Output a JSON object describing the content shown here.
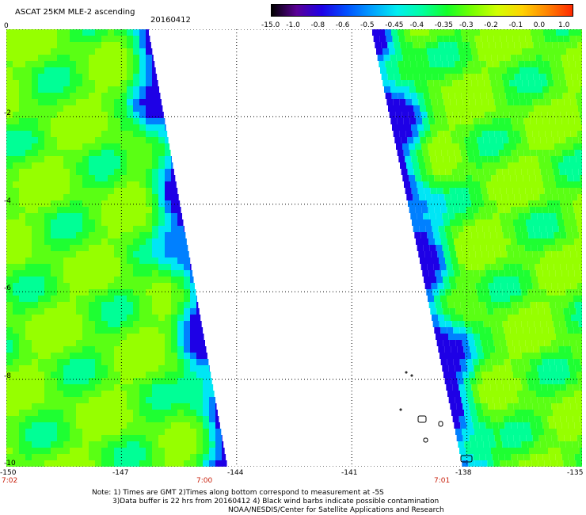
{
  "header": {
    "title": "ASCAT 25KM MLE-2 ascending",
    "date": "20160412"
  },
  "colorbar": {
    "labels": [
      "-15.0",
      "-1.0",
      "-0.8",
      "-0.6",
      "-0.5",
      "-0.45",
      "-0.4",
      "-0.35",
      "-0.3",
      "-0.2",
      "-0.1",
      "0.0",
      "1.0"
    ],
    "colors": [
      "#000000",
      "#5a0096",
      "#1e00e6",
      "#0050ff",
      "#00a0ff",
      "#00eef0",
      "#00ffa0",
      "#14ff28",
      "#78ff00",
      "#d2ff00",
      "#ffd200",
      "#ff8200",
      "#ff2800"
    ]
  },
  "axes": {
    "y_ticks": [
      "0",
      "-2",
      "-4",
      "-6",
      "-8",
      "-10"
    ],
    "y_values": [
      0,
      -2,
      -4,
      -6,
      -8,
      -10
    ],
    "x_ticks": [
      "-150",
      "-147",
      "-144",
      "-141",
      "-138",
      "-135"
    ],
    "x_values": [
      -150,
      -147,
      -144,
      -141,
      -138,
      -135
    ],
    "lon_range": [
      -150,
      -135
    ],
    "lat_range": [
      -10,
      0
    ]
  },
  "swaths": [
    {
      "pass_time": "7:02",
      "inner_time": "7:00",
      "inner_lon": -144.8
    },
    {
      "pass_time": "7:01",
      "inner_lon": -138.6
    }
  ],
  "notes": [
    "Note: 1) Times are GMT 2)Times along bottom correspond to measurement at -5S",
    "3)Data buffer is 22 hrs from 20160412 4) Black wind barbs indicate possible contamination",
    "NOAA/NESDIS/Center for Satellite Applications and Research"
  ]
}
